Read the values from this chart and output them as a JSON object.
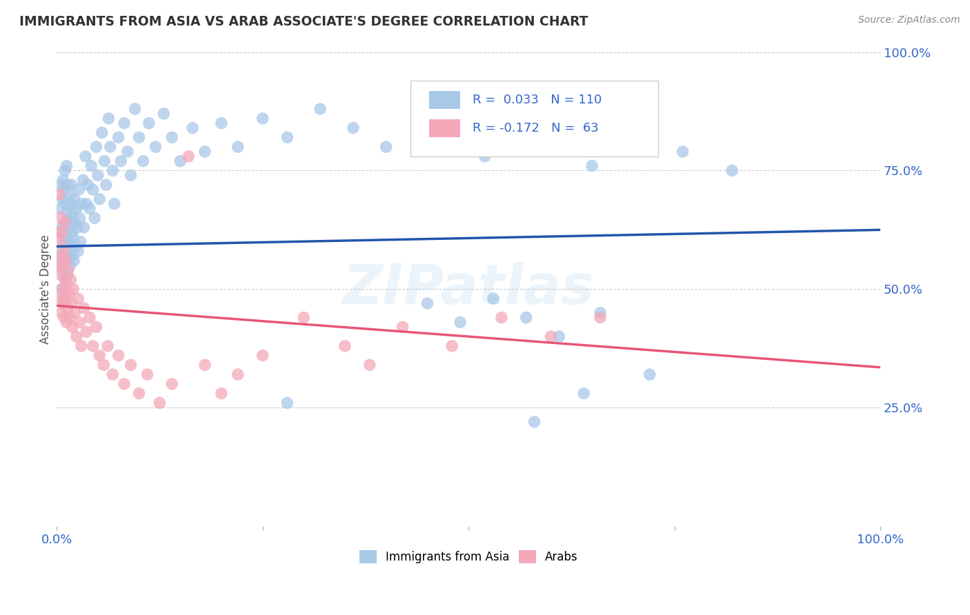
{
  "title": "IMMIGRANTS FROM ASIA VS ARAB ASSOCIATE'S DEGREE CORRELATION CHART",
  "source": "Source: ZipAtlas.com",
  "ylabel": "Associate's Degree",
  "xlim": [
    0,
    1.0
  ],
  "ylim": [
    0,
    1.0
  ],
  "blue_color": "#a8c8e8",
  "pink_color": "#f4a8b8",
  "blue_line_color": "#2255aa",
  "pink_line_color": "#e85577",
  "R_blue": 0.033,
  "N_blue": 110,
  "R_pink": -0.172,
  "N_pink": 63,
  "legend_label_blue": "Immigrants from Asia",
  "legend_label_pink": "Arabs",
  "watermark": "ZIPatlas",
  "title_color": "#333333",
  "source_color": "#888888",
  "tick_color": "#3366cc",
  "grid_color": "#cccccc",
  "ylabel_color": "#555555",
  "blue_trend": [
    0.0,
    0.59,
    1.0,
    0.625
  ],
  "pink_trend": [
    0.0,
    0.465,
    1.0,
    0.335
  ],
  "blue_points": [
    [
      0.003,
      0.62
    ],
    [
      0.004,
      0.55
    ],
    [
      0.004,
      0.67
    ],
    [
      0.005,
      0.58
    ],
    [
      0.005,
      0.72
    ],
    [
      0.006,
      0.5
    ],
    [
      0.006,
      0.63
    ],
    [
      0.007,
      0.57
    ],
    [
      0.007,
      0.69
    ],
    [
      0.008,
      0.54
    ],
    [
      0.008,
      0.62
    ],
    [
      0.008,
      0.73
    ],
    [
      0.009,
      0.48
    ],
    [
      0.009,
      0.6
    ],
    [
      0.009,
      0.71
    ],
    [
      0.01,
      0.56
    ],
    [
      0.01,
      0.64
    ],
    [
      0.01,
      0.75
    ],
    [
      0.011,
      0.52
    ],
    [
      0.011,
      0.61
    ],
    [
      0.011,
      0.68
    ],
    [
      0.012,
      0.58
    ],
    [
      0.012,
      0.66
    ],
    [
      0.012,
      0.76
    ],
    [
      0.013,
      0.53
    ],
    [
      0.013,
      0.63
    ],
    [
      0.013,
      0.72
    ],
    [
      0.014,
      0.57
    ],
    [
      0.014,
      0.65
    ],
    [
      0.015,
      0.6
    ],
    [
      0.015,
      0.7
    ],
    [
      0.016,
      0.55
    ],
    [
      0.016,
      0.64
    ],
    [
      0.017,
      0.59
    ],
    [
      0.017,
      0.68
    ],
    [
      0.018,
      0.62
    ],
    [
      0.018,
      0.72
    ],
    [
      0.019,
      0.57
    ],
    [
      0.019,
      0.66
    ],
    [
      0.02,
      0.61
    ],
    [
      0.021,
      0.56
    ],
    [
      0.021,
      0.69
    ],
    [
      0.022,
      0.64
    ],
    [
      0.023,
      0.59
    ],
    [
      0.024,
      0.67
    ],
    [
      0.025,
      0.63
    ],
    [
      0.026,
      0.58
    ],
    [
      0.027,
      0.71
    ],
    [
      0.028,
      0.65
    ],
    [
      0.029,
      0.6
    ],
    [
      0.03,
      0.68
    ],
    [
      0.032,
      0.73
    ],
    [
      0.033,
      0.63
    ],
    [
      0.035,
      0.78
    ],
    [
      0.036,
      0.68
    ],
    [
      0.038,
      0.72
    ],
    [
      0.04,
      0.67
    ],
    [
      0.042,
      0.76
    ],
    [
      0.044,
      0.71
    ],
    [
      0.046,
      0.65
    ],
    [
      0.048,
      0.8
    ],
    [
      0.05,
      0.74
    ],
    [
      0.052,
      0.69
    ],
    [
      0.055,
      0.83
    ],
    [
      0.058,
      0.77
    ],
    [
      0.06,
      0.72
    ],
    [
      0.063,
      0.86
    ],
    [
      0.065,
      0.8
    ],
    [
      0.068,
      0.75
    ],
    [
      0.07,
      0.68
    ],
    [
      0.075,
      0.82
    ],
    [
      0.078,
      0.77
    ],
    [
      0.082,
      0.85
    ],
    [
      0.086,
      0.79
    ],
    [
      0.09,
      0.74
    ],
    [
      0.095,
      0.88
    ],
    [
      0.1,
      0.82
    ],
    [
      0.105,
      0.77
    ],
    [
      0.112,
      0.85
    ],
    [
      0.12,
      0.8
    ],
    [
      0.13,
      0.87
    ],
    [
      0.14,
      0.82
    ],
    [
      0.15,
      0.77
    ],
    [
      0.165,
      0.84
    ],
    [
      0.18,
      0.79
    ],
    [
      0.2,
      0.85
    ],
    [
      0.22,
      0.8
    ],
    [
      0.25,
      0.86
    ],
    [
      0.28,
      0.82
    ],
    [
      0.32,
      0.88
    ],
    [
      0.36,
      0.84
    ],
    [
      0.4,
      0.8
    ],
    [
      0.44,
      0.85
    ],
    [
      0.48,
      0.82
    ],
    [
      0.52,
      0.78
    ],
    [
      0.56,
      0.83
    ],
    [
      0.6,
      0.8
    ],
    [
      0.65,
      0.76
    ],
    [
      0.7,
      0.82
    ],
    [
      0.76,
      0.79
    ],
    [
      0.82,
      0.75
    ],
    [
      0.45,
      0.47
    ],
    [
      0.49,
      0.43
    ],
    [
      0.53,
      0.48
    ],
    [
      0.57,
      0.44
    ],
    [
      0.61,
      0.4
    ],
    [
      0.66,
      0.45
    ],
    [
      0.28,
      0.26
    ],
    [
      0.58,
      0.22
    ],
    [
      0.64,
      0.28
    ],
    [
      0.72,
      0.32
    ]
  ],
  "pink_points": [
    [
      0.002,
      0.62
    ],
    [
      0.003,
      0.55
    ],
    [
      0.003,
      0.7
    ],
    [
      0.004,
      0.48
    ],
    [
      0.004,
      0.6
    ],
    [
      0.005,
      0.53
    ],
    [
      0.005,
      0.65
    ],
    [
      0.006,
      0.45
    ],
    [
      0.006,
      0.57
    ],
    [
      0.007,
      0.5
    ],
    [
      0.007,
      0.62
    ],
    [
      0.008,
      0.55
    ],
    [
      0.008,
      0.47
    ],
    [
      0.009,
      0.58
    ],
    [
      0.009,
      0.44
    ],
    [
      0.01,
      0.52
    ],
    [
      0.01,
      0.64
    ],
    [
      0.011,
      0.48
    ],
    [
      0.011,
      0.56
    ],
    [
      0.012,
      0.43
    ],
    [
      0.012,
      0.51
    ],
    [
      0.013,
      0.46
    ],
    [
      0.014,
      0.54
    ],
    [
      0.015,
      0.49
    ],
    [
      0.016,
      0.44
    ],
    [
      0.017,
      0.52
    ],
    [
      0.018,
      0.47
    ],
    [
      0.019,
      0.42
    ],
    [
      0.02,
      0.5
    ],
    [
      0.022,
      0.45
    ],
    [
      0.024,
      0.4
    ],
    [
      0.026,
      0.48
    ],
    [
      0.028,
      0.43
    ],
    [
      0.03,
      0.38
    ],
    [
      0.033,
      0.46
    ],
    [
      0.036,
      0.41
    ],
    [
      0.04,
      0.44
    ],
    [
      0.044,
      0.38
    ],
    [
      0.048,
      0.42
    ],
    [
      0.052,
      0.36
    ],
    [
      0.057,
      0.34
    ],
    [
      0.062,
      0.38
    ],
    [
      0.068,
      0.32
    ],
    [
      0.075,
      0.36
    ],
    [
      0.082,
      0.3
    ],
    [
      0.09,
      0.34
    ],
    [
      0.1,
      0.28
    ],
    [
      0.11,
      0.32
    ],
    [
      0.125,
      0.26
    ],
    [
      0.14,
      0.3
    ],
    [
      0.16,
      0.78
    ],
    [
      0.18,
      0.34
    ],
    [
      0.2,
      0.28
    ],
    [
      0.22,
      0.32
    ],
    [
      0.25,
      0.36
    ],
    [
      0.3,
      0.44
    ],
    [
      0.35,
      0.38
    ],
    [
      0.38,
      0.34
    ],
    [
      0.42,
      0.42
    ],
    [
      0.48,
      0.38
    ],
    [
      0.54,
      0.44
    ],
    [
      0.6,
      0.4
    ],
    [
      0.66,
      0.44
    ]
  ]
}
